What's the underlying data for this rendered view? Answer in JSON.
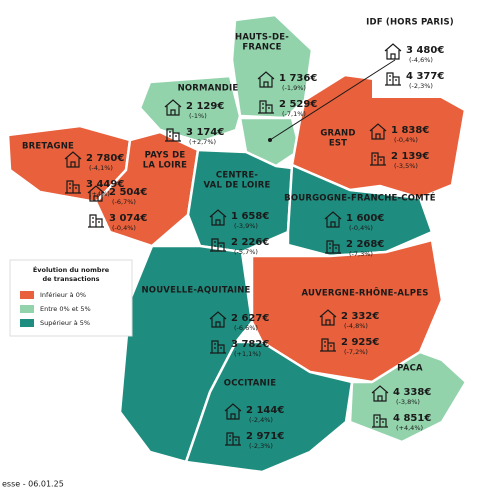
{
  "legend": {
    "title": [
      "Évolution du nombre",
      "de transactions"
    ],
    "items": [
      {
        "label": "Inférieur à 0%",
        "color": "#e8603c"
      },
      {
        "label": "Entre 0% et 5%",
        "color": "#92d3ac"
      },
      {
        "label": "Supérieur à 5%",
        "color": "#1e8c7e"
      }
    ]
  },
  "regions": [
    {
      "name": [
        "HAUTS-DE-",
        "FRANCE"
      ],
      "category": 1,
      "house_price": "1 736€",
      "house_change": "(-1,9%)",
      "apartment_price": "2 529€",
      "apartment_change": "(-7,1%)"
    },
    {
      "name": [
        "NORMANDIE"
      ],
      "category": 1,
      "house_price": "2 129€",
      "house_change": "(-1%)",
      "apartment_price": "3 174€",
      "apartment_change": "(+2,7%)"
    },
    {
      "name": [
        "IDF (HORS PARIS)"
      ],
      "category": 1,
      "house_price": "3 480€",
      "house_change": "(-4,6%)",
      "apartment_price": "4 377€",
      "apartment_change": "(-2,3%)"
    },
    {
      "name": [
        "GRAND",
        "EST"
      ],
      "category": 0,
      "house_price": "1 838€",
      "house_change": "(-0,4%)",
      "apartment_price": "2 139€",
      "apartment_change": "(-3,5%)"
    },
    {
      "name": [
        "BRETAGNE"
      ],
      "category": 0,
      "house_price": "2 780€",
      "house_change": "(-4,1%)",
      "apartment_price": "3 449€",
      "apartment_change": "(+4%)"
    },
    {
      "name": [
        "PAYS DE",
        "LA LOIRE"
      ],
      "category": 0,
      "house_price": "2 504€",
      "house_change": "(-6,7%)",
      "apartment_price": "3 074€",
      "apartment_change": "(-0,4%)"
    },
    {
      "name": [
        "CENTRE-",
        "VAL DE LOIRE"
      ],
      "category": 2,
      "house_price": "1 658€",
      "house_change": "(-3,9%)",
      "apartment_price": "2 226€",
      "apartment_change": "(-5,7%)"
    },
    {
      "name": [
        "BOURGOGNE-FRANCHE-COMTÉ"
      ],
      "category": 2,
      "house_price": "1 600€",
      "house_change": "(-0,4%)",
      "apartment_price": "2 268€",
      "apartment_change": "(-7,3%)"
    },
    {
      "name": [
        "NOUVELLE-AQUITAINE"
      ],
      "category": 2,
      "house_price": "2 627€",
      "house_change": "(-6,6%)",
      "apartment_price": "3 782€",
      "apartment_change": "(+1,1%)"
    },
    {
      "name": [
        "AUVERGNE-RHÔNE-ALPES"
      ],
      "category": 0,
      "house_price": "2 332€",
      "house_change": "(-4,8%)",
      "apartment_price": "2 925€",
      "apartment_change": "(-7,2%)"
    },
    {
      "name": [
        "OCCITANIE"
      ],
      "category": 2,
      "house_price": "2 144€",
      "house_change": "(-2,4%)",
      "apartment_price": "2 971€",
      "apartment_change": "(-2,3%)"
    },
    {
      "name": [
        "PACA"
      ],
      "category": 1,
      "house_price": "4 338€",
      "house_change": "(-3,8%)",
      "apartment_price": "4 851€",
      "apartment_change": "(+4,4%)"
    }
  ],
  "footer": "esse - 06.01.25"
}
